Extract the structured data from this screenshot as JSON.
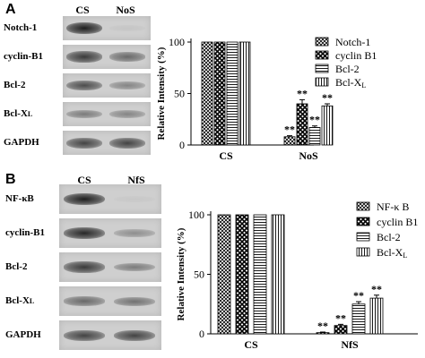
{
  "panels": [
    {
      "letter": "A",
      "lanes": [
        "CS",
        "NoS"
      ],
      "blot_rows": [
        {
          "label": "Notch-1",
          "band_strength": [
            0.95,
            0.05
          ]
        },
        {
          "label": "cyclin-B1",
          "band_strength": [
            0.8,
            0.55
          ]
        },
        {
          "label": "Bcl-2",
          "band_strength": [
            0.7,
            0.4
          ]
        },
        {
          "label": "Bcl-XL",
          "band_strength": [
            0.45,
            0.4
          ]
        },
        {
          "label": "GAPDH",
          "band_strength": [
            0.75,
            0.75
          ]
        }
      ],
      "chart_data": {
        "type": "bar",
        "ylabel": "Relative Intensity (%)",
        "ylim": [
          0,
          100
        ],
        "yticks": [
          0,
          50,
          100
        ],
        "categories": [
          "CS",
          "NoS"
        ],
        "series": [
          {
            "name": "Notch-1",
            "values": [
              100,
              8
            ],
            "errors": [
              0,
              1
            ],
            "pattern": "crosshatch"
          },
          {
            "name": "cyclin B1",
            "values": [
              100,
              40
            ],
            "errors": [
              0,
              4
            ],
            "pattern": "checker"
          },
          {
            "name": "Bcl-2",
            "values": [
              100,
              17
            ],
            "errors": [
              0,
              1.5
            ],
            "pattern": "hlines"
          },
          {
            "name": "Bcl-XL",
            "values": [
              100,
              38
            ],
            "errors": [
              0,
              2
            ],
            "pattern": "vlines"
          }
        ],
        "annotations": [
          {
            "category": "NoS",
            "series": 0,
            "text": "**"
          },
          {
            "category": "NoS",
            "series": 1,
            "text": "**"
          },
          {
            "category": "NoS",
            "series": 2,
            "text": "**"
          },
          {
            "category": "NoS",
            "series": 3,
            "text": "**"
          }
        ],
        "legend_position": "top-right"
      }
    },
    {
      "letter": "B",
      "lanes": [
        "CS",
        "NfS"
      ],
      "blot_rows": [
        {
          "label": "NF-κB",
          "band_strength": [
            0.95,
            0.03
          ]
        },
        {
          "label": "cyclin-B1",
          "band_strength": [
            0.9,
            0.35
          ]
        },
        {
          "label": "Bcl-2",
          "band_strength": [
            0.8,
            0.45
          ]
        },
        {
          "label": "Bcl-XL",
          "band_strength": [
            0.55,
            0.5
          ]
        },
        {
          "label": "GAPDH",
          "band_strength": [
            0.75,
            0.75
          ]
        }
      ],
      "chart_data": {
        "type": "bar",
        "ylabel": "Relative Intensity (%)",
        "ylim": [
          0,
          100
        ],
        "yticks": [
          0,
          50,
          100
        ],
        "categories": [
          "CS",
          "NfS"
        ],
        "series": [
          {
            "name": "NF-κ B",
            "values": [
              100,
              1
            ],
            "errors": [
              0,
              0.5
            ],
            "pattern": "crosshatch"
          },
          {
            "name": "cyclin B1",
            "values": [
              100,
              7
            ],
            "errors": [
              0,
              1
            ],
            "pattern": "checker"
          },
          {
            "name": "Bcl-2",
            "values": [
              100,
              25
            ],
            "errors": [
              0,
              2
            ],
            "pattern": "hlines"
          },
          {
            "name": "Bcl-XL",
            "values": [
              100,
              30
            ],
            "errors": [
              0,
              2.5
            ],
            "pattern": "vlines"
          }
        ],
        "annotations": [
          {
            "category": "NfS",
            "series": 0,
            "text": "**"
          },
          {
            "category": "NfS",
            "series": 1,
            "text": "**"
          },
          {
            "category": "NfS",
            "series": 2,
            "text": "**"
          },
          {
            "category": "NfS",
            "series": 3,
            "text": "**"
          }
        ],
        "legend_position": "top-right"
      }
    }
  ]
}
